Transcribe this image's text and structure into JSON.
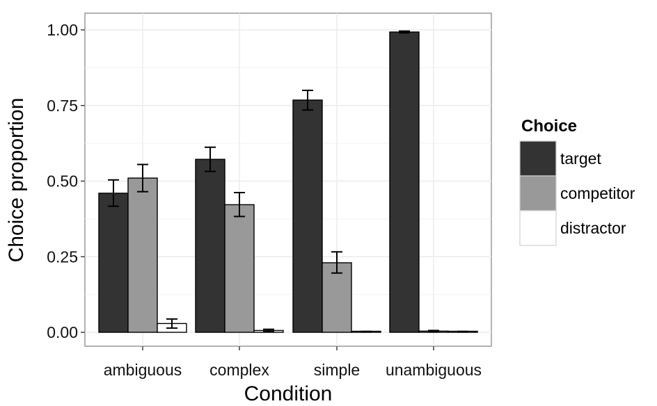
{
  "chart_data": {
    "type": "bar",
    "categories": [
      "ambiguous",
      "complex",
      "simple",
      "unambiguous"
    ],
    "series": [
      {
        "name": "target",
        "color": "#333333",
        "values": [
          0.46,
          0.572,
          0.768,
          0.993
        ],
        "error": [
          [
            0.417,
            0.504
          ],
          [
            0.532,
            0.612
          ],
          [
            0.735,
            0.8
          ],
          [
            0.99,
            0.996
          ]
        ]
      },
      {
        "name": "competitor",
        "color": "#999999",
        "values": [
          0.51,
          0.422,
          0.23,
          0.004
        ],
        "error": [
          [
            0.465,
            0.555
          ],
          [
            0.383,
            0.462
          ],
          [
            0.196,
            0.266
          ],
          [
            0.002,
            0.006
          ]
        ]
      },
      {
        "name": "distractor",
        "color": "#ffffff",
        "values": [
          0.029,
          0.006,
          0.002,
          0.002
        ],
        "error": [
          [
            0.014,
            0.044
          ],
          [
            0.002,
            0.01
          ],
          [
            0.001,
            0.003
          ],
          [
            0.001,
            0.003
          ]
        ]
      }
    ],
    "yticks": [
      0.0,
      0.25,
      0.5,
      0.75,
      1.0
    ],
    "ytick_labels": [
      "0.00",
      "0.25",
      "0.50",
      "0.75",
      "1.00"
    ],
    "ylim": [
      -0.05,
      1.05
    ],
    "xlabel": "Condition",
    "ylabel": "Choice proportion",
    "legend_title": "Choice",
    "legend_position": "right",
    "grid": true,
    "panel_background": "#ffffff",
    "grid_color": "#ebebeb"
  }
}
